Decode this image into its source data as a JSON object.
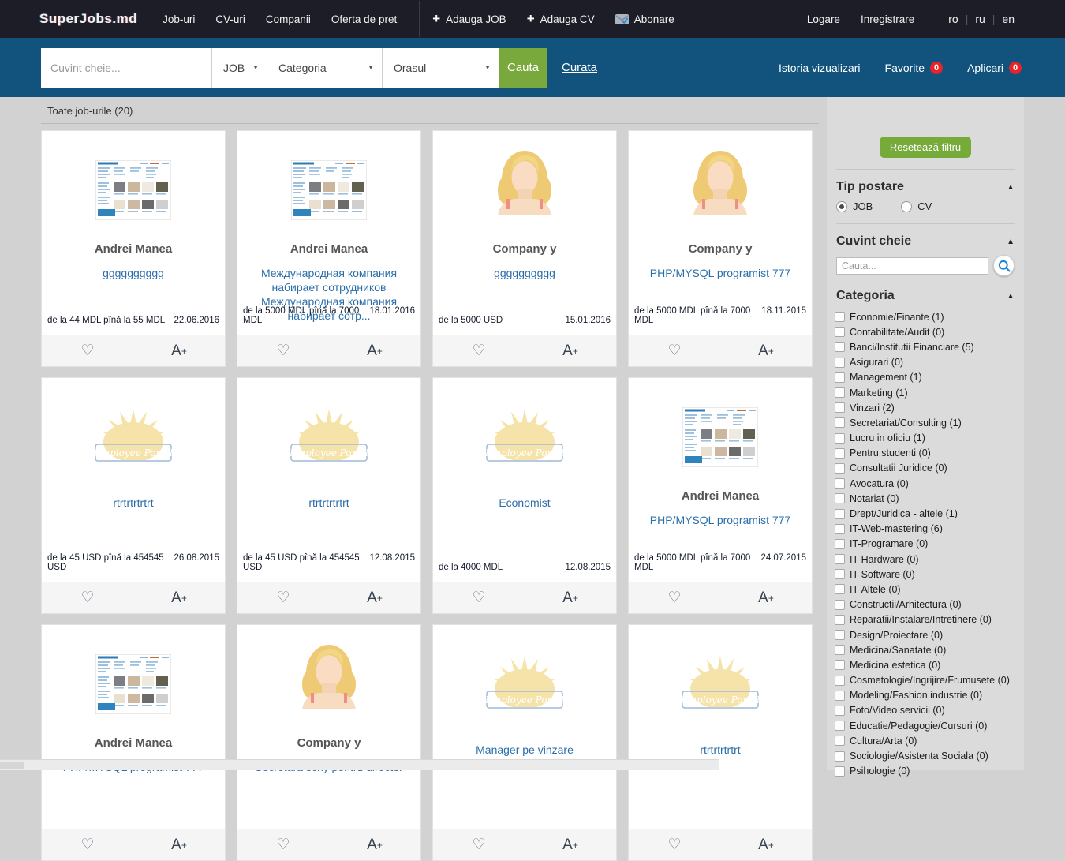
{
  "navbar": {
    "logo": "SuperJobs.md",
    "links": [
      "Job-uri",
      "CV-uri",
      "Companii",
      "Oferta de pret"
    ],
    "actions": [
      {
        "label": "Adauga JOB",
        "icon": "plus-icon"
      },
      {
        "label": "Adauga CV",
        "icon": "plus-icon"
      },
      {
        "label": "Abonare",
        "icon": "mail-icon"
      }
    ],
    "auth": {
      "login": "Logare",
      "register": "Inregistrare"
    },
    "languages": [
      {
        "code": "ro",
        "active": true
      },
      {
        "code": "ru",
        "active": false
      },
      {
        "code": "en",
        "active": false
      }
    ]
  },
  "searchbar": {
    "keyword_placeholder": "Cuvint cheie...",
    "type_select": "JOB",
    "category_select": "Categoria",
    "city_select": "Orasul",
    "search_button": "Cauta",
    "clear_link": "Curata",
    "history_link": "Istoria vizualizari",
    "favorites_label": "Favorite",
    "favorites_count": "0",
    "applications_label": "Aplicari",
    "applications_count": "0"
  },
  "main": {
    "heading": "Toate job-urile (20)"
  },
  "cards": [
    {
      "image": "site-screenshot",
      "company": "Andrei Manea",
      "title": "gggggggggg",
      "price": "de la 44 MDL pînă la 55 MDL",
      "date": "22.06.2016"
    },
    {
      "image": "site-screenshot",
      "company": "Andrei Manea",
      "title": "Международная компания набирает сотрудников Международная компания набирает сотр...",
      "price": "de la 5000 MDL pînă la 7000 MDL",
      "date": "18.01.2016"
    },
    {
      "image": "woman-avatar",
      "company": "Company y",
      "title": "gggggggggg",
      "price": "de la 5000 USD",
      "date": "15.01.2016"
    },
    {
      "image": "woman-avatar",
      "company": "Company y",
      "title": "PHP/MYSQL programist 777",
      "price": "de la 5000 MDL pînă la 7000 MDL",
      "date": "18.11.2015"
    },
    {
      "image": "employee-portal",
      "company": "",
      "title": "rtrtrtrtrtrt",
      "price": "de la 45 USD pînă la 454545 USD",
      "date": "26.08.2015"
    },
    {
      "image": "employee-portal",
      "company": "",
      "title": "rtrtrtrtrtrt",
      "price": "de la 45 USD pînă la 454545 USD",
      "date": "12.08.2015"
    },
    {
      "image": "employee-portal",
      "company": "",
      "title": "Economist",
      "price": "de la 4000 MDL",
      "date": "12.08.2015"
    },
    {
      "image": "site-screenshot",
      "company": "Andrei Manea",
      "title": "PHP/MYSQL programist 777",
      "price": "de la 5000 MDL pînă la 7000 MDL",
      "date": "24.07.2015"
    },
    {
      "image": "site-screenshot",
      "company": "Andrei Manea",
      "title": "PHP/MYSQL programist 777",
      "price": "",
      "date": ""
    },
    {
      "image": "woman-avatar",
      "company": "Company y",
      "title": "Secretara sexy pentru director",
      "price": "",
      "date": ""
    },
    {
      "image": "employee-portal",
      "company": "",
      "title": "Manager pe vinzare",
      "price": "",
      "date": ""
    },
    {
      "image": "employee-portal",
      "company": "",
      "title": "rtrtrtrtrtrt",
      "price": "",
      "date": ""
    }
  ],
  "sidebar": {
    "reset_button": "Resetează filtru",
    "type_section": {
      "heading": "Tip postare",
      "options": [
        {
          "label": "JOB",
          "selected": true
        },
        {
          "label": "CV",
          "selected": false
        }
      ]
    },
    "keyword_section": {
      "heading": "Cuvint cheie",
      "placeholder": "Cauta..."
    },
    "category_section": {
      "heading": "Categoria",
      "items": [
        {
          "label": "Economie/Finante",
          "count": 1
        },
        {
          "label": "Contabilitate/Audit",
          "count": 0
        },
        {
          "label": "Banci/Institutii Financiare",
          "count": 5
        },
        {
          "label": "Asigurari",
          "count": 0
        },
        {
          "label": "Management",
          "count": 1
        },
        {
          "label": "Marketing",
          "count": 1
        },
        {
          "label": "Vinzari",
          "count": 2
        },
        {
          "label": "Secretariat/Consulting",
          "count": 1
        },
        {
          "label": "Lucru in oficiu",
          "count": 1
        },
        {
          "label": "Pentru studenti",
          "count": 0
        },
        {
          "label": "Consultatii Juridice",
          "count": 0
        },
        {
          "label": "Avocatura",
          "count": 0
        },
        {
          "label": "Notariat",
          "count": 0
        },
        {
          "label": "Drept/Juridica - altele",
          "count": 1
        },
        {
          "label": "IT-Web-mastering",
          "count": 6
        },
        {
          "label": "IT-Programare",
          "count": 0
        },
        {
          "label": "IT-Hardware",
          "count": 0
        },
        {
          "label": "IT-Software",
          "count": 0
        },
        {
          "label": "IT-Altele",
          "count": 0
        },
        {
          "label": "Constructii/Arhitectura",
          "count": 0
        },
        {
          "label": "Reparatii/Instalare/Intretinere",
          "count": 0
        },
        {
          "label": "Design/Proiectare",
          "count": 0
        },
        {
          "label": "Medicina/Sanatate",
          "count": 0
        },
        {
          "label": "Medicina estetica",
          "count": 0
        },
        {
          "label": "Cosmetologie/Ingrijire/Frumusete",
          "count": 0
        },
        {
          "label": "Modeling/Fashion industrie",
          "count": 0
        },
        {
          "label": "Foto/Video servicii",
          "count": 0
        },
        {
          "label": "Educatie/Pedagogie/Cursuri",
          "count": 0
        },
        {
          "label": "Cultura/Arta",
          "count": 0
        },
        {
          "label": "Sociologie/Asistenta Sociala",
          "count": 0
        },
        {
          "label": "Psihologie",
          "count": 0
        }
      ]
    }
  },
  "colors": {
    "navbar_bg": "#1d1d27",
    "searchbar_bg": "#11537d",
    "accent_green": "#79a93c",
    "badge_red": "#e8232a",
    "link_blue": "#2a6ea9",
    "page_bg": "#d2d2d2"
  }
}
